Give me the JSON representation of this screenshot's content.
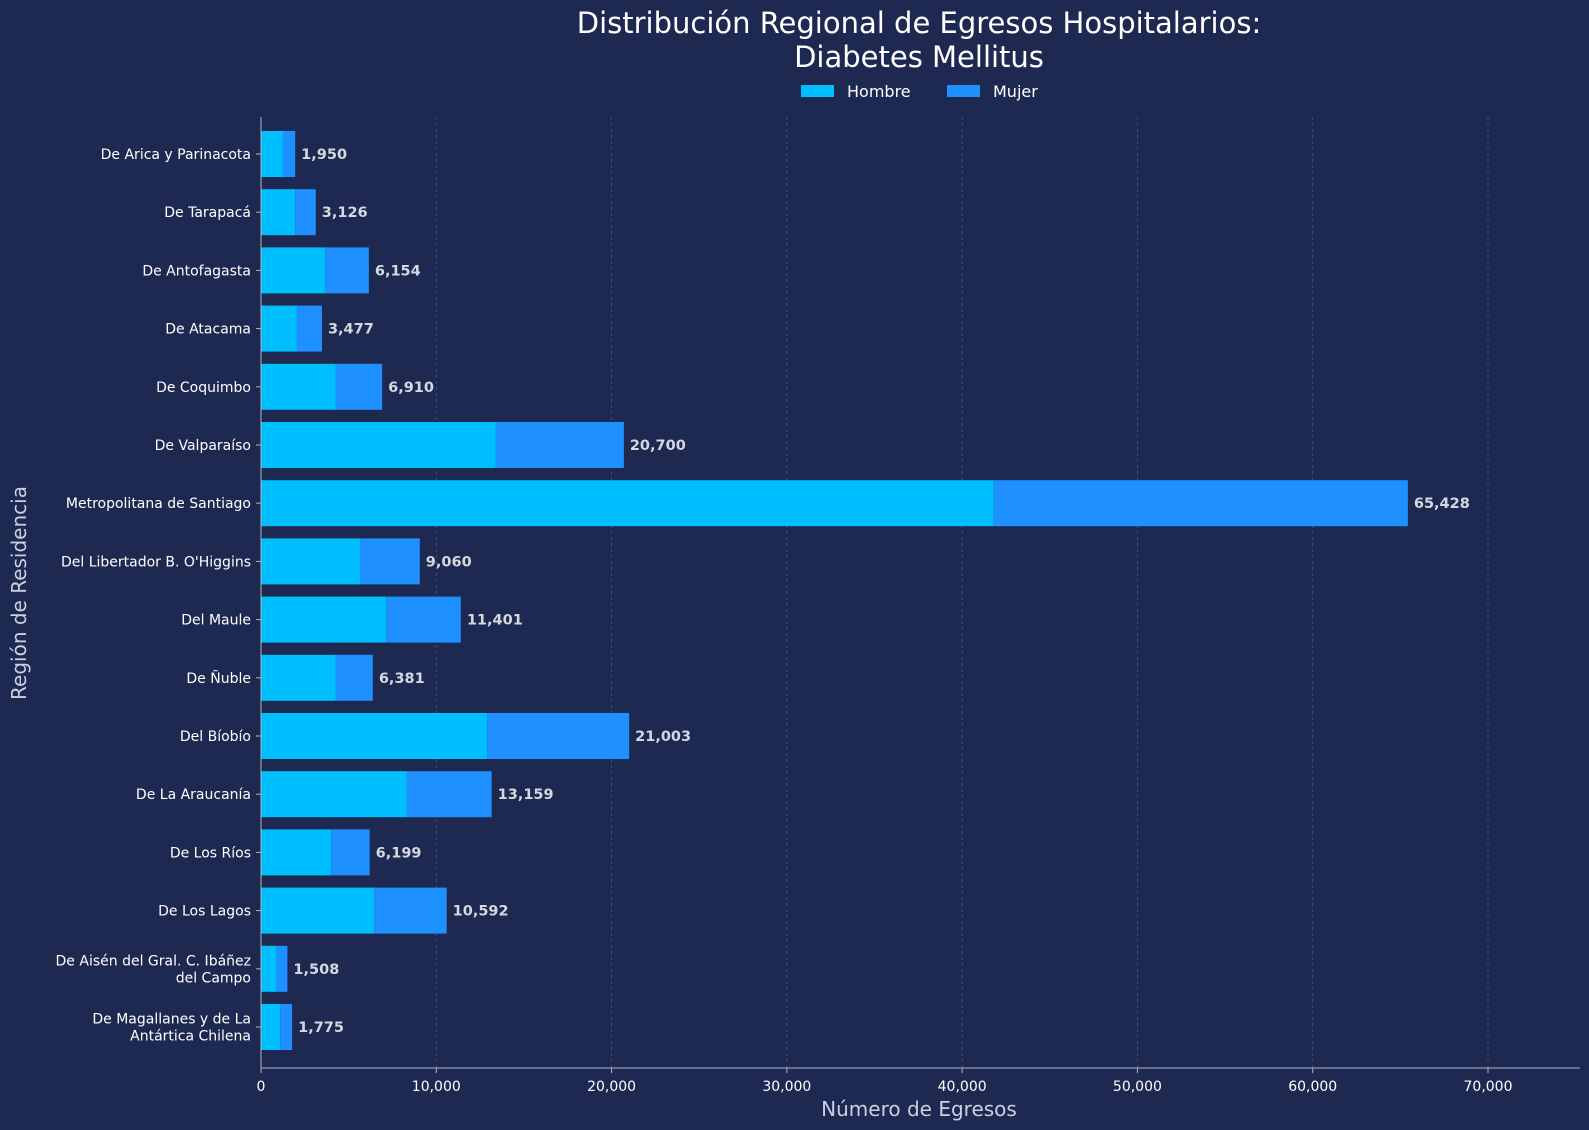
{
  "chart_data": {
    "type": "bar",
    "orientation": "horizontal",
    "stacked": true,
    "title_lines": [
      "Distribución Regional de Egresos Hospitalarios:",
      "Diabetes Mellitus"
    ],
    "xlabel": "Número de Egresos",
    "ylabel": "Región de Residencia",
    "xlim": [
      0,
      75000
    ],
    "xticks": [
      0,
      10000,
      20000,
      30000,
      40000,
      50000,
      60000,
      70000
    ],
    "xtick_labels": [
      "0",
      "10,000",
      "20,000",
      "30,000",
      "40,000",
      "50,000",
      "60,000",
      "70,000"
    ],
    "grid": "x-only dashed",
    "legend_position": "top-center",
    "categories": [
      [
        "De Arica y Parinacota"
      ],
      [
        "De Tarapacá"
      ],
      [
        "De Antofagasta"
      ],
      [
        "De Atacama"
      ],
      [
        "De Coquimbo"
      ],
      [
        "De Valparaíso"
      ],
      [
        "Metropolitana de Santiago"
      ],
      [
        "Del Libertador B. O'Higgins"
      ],
      [
        "Del Maule"
      ],
      [
        "De Ñuble"
      ],
      [
        "Del Bíobío"
      ],
      [
        "De La Araucanía"
      ],
      [
        "De Los Ríos"
      ],
      [
        "De Los Lagos"
      ],
      [
        "De Aisén del Gral. C. Ibáñez",
        "del Campo"
      ],
      [
        "De Magallanes y de La",
        "Antártica Chilena"
      ]
    ],
    "series": [
      {
        "name": "Hombre",
        "color": "#00bfff",
        "values": [
          1250,
          1950,
          3650,
          2050,
          4250,
          13400,
          41800,
          5650,
          7150,
          4250,
          12900,
          8300,
          4000,
          6450,
          900,
          1100
        ]
      },
      {
        "name": "Mujer",
        "color": "#1e90ff",
        "values": [
          700,
          1176,
          2504,
          1427,
          2660,
          7300,
          23628,
          3410,
          4251,
          2131,
          8103,
          4859,
          2199,
          4142,
          608,
          675
        ]
      }
    ],
    "totals": [
      1950,
      3126,
      6154,
      3477,
      6910,
      20700,
      65428,
      9060,
      11401,
      6381,
      21003,
      13159,
      6199,
      10592,
      1508,
      1775
    ],
    "total_labels": [
      "1,950",
      "3,126",
      "6,154",
      "3,477",
      "6,910",
      "20,700",
      "65,428",
      "9,060",
      "11,401",
      "6,381",
      "21,003",
      "13,159",
      "6,199",
      "10,592",
      "1,508",
      "1,775"
    ]
  },
  "colors": {
    "background": "#1d2951",
    "hombre": "#00bfff",
    "mujer": "#1e90ff"
  }
}
